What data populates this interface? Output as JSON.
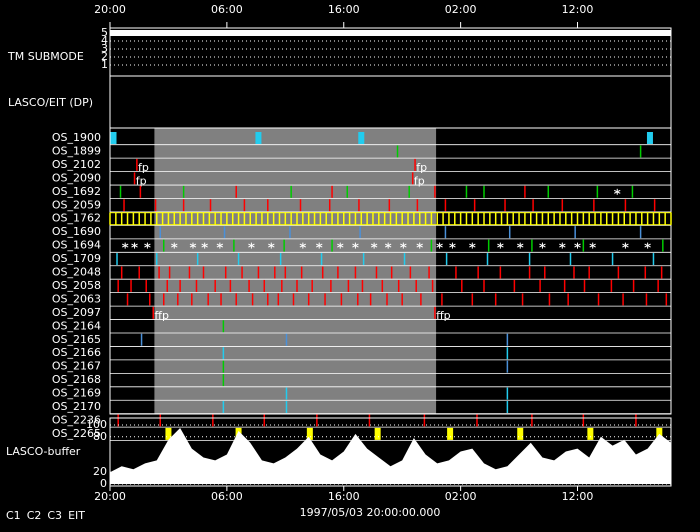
{
  "time_axis": {
    "range": [
      0,
      48
    ],
    "ticks": [
      {
        "value": 0,
        "label": "20:00"
      },
      {
        "value": 10,
        "label": "06:00"
      },
      {
        "value": 20,
        "label": "16:00"
      },
      {
        "value": 30,
        "label": "02:00"
      },
      {
        "value": 40,
        "label": "12:00"
      }
    ]
  },
  "tm_submode": {
    "label": "TM SUBMODE",
    "levels": [
      5,
      4,
      3,
      2,
      1
    ],
    "value": 5
  },
  "lasco_eit": {
    "label": "LASCO/EIT (DP)"
  },
  "shaded": [
    3.8,
    27.9
  ],
  "rows": [
    {
      "label": "OS_1900",
      "marks": [
        {
          "color": "#22ccee",
          "style": "block",
          "times": [
            0.3,
            12.7,
            21.5,
            46.2
          ]
        }
      ]
    },
    {
      "label": "OS_1899",
      "marks": [
        {
          "color": "#00cc00",
          "style": "line",
          "times": [
            24.6,
            45.4
          ]
        }
      ]
    },
    {
      "label": "OS_2102",
      "marks": [
        {
          "color": "#ff0000",
          "style": "line",
          "times": [
            2.3,
            26.1
          ]
        }
      ],
      "labels": [
        {
          "t": 2.4,
          "text": "fp"
        },
        {
          "t": 26.2,
          "text": "fp"
        }
      ]
    },
    {
      "label": "OS_2090",
      "marks": [
        {
          "color": "#ff0000",
          "style": "line",
          "times": [
            2.1,
            25.9
          ]
        }
      ],
      "labels": [
        {
          "t": 2.2,
          "text": "fp"
        },
        {
          "t": 26.0,
          "text": "fp"
        }
      ]
    },
    {
      "label": "OS_1692",
      "marks": [
        {
          "color": "#00cc00",
          "style": "line",
          "times": [
            0.9,
            6.3,
            15.5,
            20.3,
            25.6,
            30.5,
            32.0,
            37.5,
            41.7,
            44.7
          ]
        },
        {
          "color": "#ff0000",
          "style": "line",
          "times": [
            2.6,
            10.8,
            19.0,
            27.8,
            35.5
          ]
        },
        {
          "color": "#ffffff",
          "style": "star",
          "times": [
            43.4
          ]
        }
      ]
    },
    {
      "label": "OS_2059",
      "marks": [
        {
          "color": "#ff0000",
          "style": "line",
          "times": [
            1.2,
            3.9,
            6.3,
            8.6,
            11.5,
            13.5,
            16.3,
            18.8,
            21.3,
            23.9,
            26.3,
            28.7,
            31.2,
            33.8,
            36.2,
            38.7,
            41.4,
            44.1,
            46.6
          ]
        }
      ]
    },
    {
      "label": "OS_1762",
      "marks": [
        {
          "color": "#ffff00",
          "style": "line",
          "times": [
            0,
            0.5,
            1,
            1.5,
            2,
            2.5,
            3,
            3.5,
            4,
            4.5,
            5,
            5.5,
            6,
            6.5,
            7,
            7.5,
            8,
            8.5,
            9,
            9.5,
            10,
            10.5,
            11,
            11.5,
            12,
            12.5,
            13,
            13.5,
            14,
            14.5,
            15,
            15.5,
            16,
            16.5,
            17,
            17.5,
            18,
            18.5,
            19,
            19.5,
            20,
            20.5,
            21,
            21.5,
            22,
            22.5,
            23,
            23.5,
            24,
            24.5,
            25,
            25.5,
            26,
            26.5,
            27,
            27.5,
            28,
            28.5,
            29,
            29.5,
            30,
            30.5,
            31,
            31.5,
            32,
            32.5,
            33,
            33.5,
            34,
            34.5,
            35,
            35.5,
            36,
            36.5,
            37,
            37.5,
            38,
            38.5,
            39,
            39.5,
            40,
            40.5,
            41,
            41.5,
            42,
            42.5,
            43,
            43.5,
            44,
            44.5,
            45,
            45.5,
            46,
            46.5,
            47,
            47.5,
            48
          ]
        }
      ]
    },
    {
      "label": "OS_1690",
      "marks": [
        {
          "color": "#4a90d9",
          "style": "line",
          "times": [
            4.3,
            9.8,
            15.4,
            21.4,
            28.7,
            34.2,
            39.8,
            45.4
          ]
        }
      ]
    },
    {
      "label": "OS_1694",
      "marks": [
        {
          "color": "#ffffff",
          "style": "star",
          "times": [
            1.3,
            2.1,
            3.2,
            5.5,
            7.1,
            8.1,
            9.4,
            12.1,
            13.8,
            16.5,
            17.9,
            19.7,
            21.0,
            22.6,
            23.8,
            25.1,
            26.5,
            28.2,
            29.3,
            31.0,
            33.4,
            35.1,
            37.0,
            38.7,
            40.0,
            41.3,
            44.1,
            46.0
          ]
        },
        {
          "color": "#00cc00",
          "style": "line",
          "times": [
            4.6,
            10.6,
            14.9,
            19.0,
            27.5,
            32.4,
            36.1,
            40.5,
            47.3
          ]
        }
      ]
    },
    {
      "label": "OS_1709",
      "marks": [
        {
          "color": "#22ccee",
          "style": "line",
          "times": [
            0.6,
            4.0,
            7.5,
            11.0,
            14.6,
            18.1,
            21.7,
            25.2,
            28.8,
            32.3,
            35.9,
            39.4,
            43.0,
            46.5
          ]
        }
      ]
    },
    {
      "label": "OS_2048",
      "marks": [
        {
          "color": "#ff0000",
          "style": "line",
          "times": [
            1.0,
            2.5,
            4.2,
            5.1,
            6.8,
            8.0,
            9.9,
            11.3,
            12.7,
            14.1,
            15.0,
            16.4,
            18.2,
            19.5,
            21.0,
            22.8,
            24.1,
            25.7,
            27.3,
            29.6,
            31.5,
            33.4,
            35.9,
            37.2,
            39.7,
            41.0,
            43.5,
            45.8,
            47.2
          ]
        }
      ]
    },
    {
      "label": "OS_2058",
      "marks": [
        {
          "color": "#ff0000",
          "style": "line",
          "times": [
            0.7,
            1.8,
            3.1,
            4.9,
            6.0,
            7.4,
            9.0,
            10.3,
            11.9,
            13.2,
            14.7,
            16.0,
            17.3,
            18.9,
            20.4,
            21.6,
            23.3,
            24.7,
            26.2,
            27.6,
            30.1,
            32.0,
            34.6,
            36.8,
            38.9,
            40.6,
            42.9,
            44.8,
            46.9
          ]
        }
      ]
    },
    {
      "label": "OS_2063",
      "marks": [
        {
          "color": "#ff0000",
          "style": "line",
          "times": [
            1.5,
            3.4,
            4.6,
            5.8,
            7.0,
            8.4,
            9.5,
            10.8,
            12.2,
            13.5,
            14.4,
            15.7,
            17.0,
            18.4,
            19.8,
            21.2,
            22.3,
            23.7,
            25.0,
            26.6,
            28.4,
            31.0,
            33.0,
            35.3,
            37.6,
            39.2,
            41.8,
            43.9,
            45.9,
            47.6
          ]
        }
      ]
    },
    {
      "label": "OS_2097",
      "marks": [
        {
          "color": "#ff0000",
          "style": "line",
          "times": [
            3.7,
            27.8
          ]
        }
      ],
      "labels": [
        {
          "t": 3.8,
          "text": "ffp"
        },
        {
          "t": 27.9,
          "text": "ffp"
        }
      ]
    },
    {
      "label": "OS_2164",
      "marks": [
        {
          "color": "#00cc00",
          "style": "line",
          "times": [
            9.7
          ]
        }
      ]
    },
    {
      "label": "OS_2165",
      "marks": [
        {
          "color": "#4a90d9",
          "style": "line",
          "times": [
            2.7,
            15.1,
            34.0
          ]
        }
      ]
    },
    {
      "label": "OS_2166",
      "marks": [
        {
          "color": "#22ccee",
          "style": "line",
          "times": [
            9.7,
            34.0
          ]
        }
      ]
    },
    {
      "label": "OS_2167",
      "marks": [
        {
          "color": "#00cc00",
          "style": "line",
          "times": [
            9.7
          ]
        },
        {
          "color": "#4a90d9",
          "style": "line",
          "times": [
            34.0
          ]
        }
      ]
    },
    {
      "label": "OS_2168",
      "marks": [
        {
          "color": "#00cc00",
          "style": "line",
          "times": [
            9.7
          ]
        }
      ]
    },
    {
      "label": "OS_2169",
      "marks": [
        {
          "color": "#22ccee",
          "style": "line",
          "times": [
            15.1,
            34.0
          ]
        }
      ]
    },
    {
      "label": "OS_2170",
      "marks": [
        {
          "color": "#22ccee",
          "style": "line",
          "times": [
            9.7,
            15.1,
            34.0
          ]
        }
      ]
    },
    {
      "label": "OS_2236",
      "marks": [
        {
          "color": "#ff0000",
          "style": "line",
          "times": [
            0.7,
            4.3,
            8.8,
            13.2,
            17.7,
            22.2,
            26.9,
            31.4,
            36.1,
            40.5,
            45.0
          ]
        }
      ]
    },
    {
      "label": "OS_2265",
      "marks": [
        {
          "color": "#ffff00",
          "style": "block",
          "times": [
            5.0,
            11.0,
            17.1,
            22.9,
            29.1,
            35.1,
            41.1,
            47.0
          ]
        }
      ]
    }
  ],
  "buffer": {
    "label": "LASCO-buffer",
    "ylim": [
      0,
      100
    ],
    "yticks": [
      0,
      20,
      80,
      100
    ],
    "x": [
      0,
      1,
      2,
      3,
      4,
      5,
      6,
      7,
      8,
      9,
      10,
      11,
      12,
      13,
      14,
      15,
      16,
      17,
      18,
      19,
      20,
      21,
      22,
      23,
      24,
      25,
      26,
      27,
      28,
      29,
      30,
      31,
      32,
      33,
      34,
      35,
      36,
      37,
      38,
      39,
      40,
      41,
      42,
      43,
      44,
      45,
      46,
      47,
      48
    ],
    "values": [
      20,
      30,
      25,
      35,
      40,
      75,
      95,
      60,
      45,
      40,
      50,
      90,
      70,
      40,
      35,
      45,
      60,
      80,
      50,
      40,
      55,
      85,
      60,
      45,
      30,
      40,
      78,
      50,
      35,
      40,
      55,
      60,
      35,
      25,
      30,
      50,
      70,
      45,
      40,
      55,
      60,
      45,
      80,
      65,
      75,
      50,
      60,
      85,
      70
    ]
  },
  "footer": {
    "date": "1997/05/03 20:00:00.000",
    "legend": [
      {
        "text": "C1",
        "color": "#ff2020"
      },
      {
        "text": "C2",
        "color": "#00dd00"
      },
      {
        "text": "C3",
        "color": "#ffffff"
      },
      {
        "text": "EIT",
        "color": "#ffffff"
      }
    ]
  }
}
